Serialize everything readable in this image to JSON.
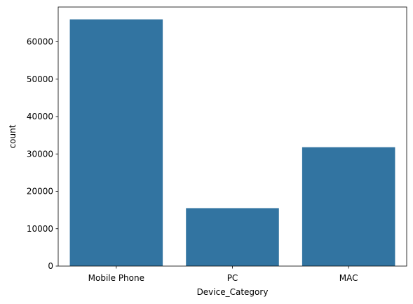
{
  "chart_data": {
    "type": "bar",
    "categories": [
      "Mobile Phone",
      "PC",
      "MAC"
    ],
    "values": [
      66000,
      15500,
      31800
    ],
    "xlabel": "Device_Category",
    "ylabel": "count",
    "ylim": [
      0,
      69300
    ],
    "yticks": [
      0,
      10000,
      20000,
      30000,
      40000,
      50000,
      60000
    ],
    "grid": false,
    "bar_color": "#3274a1"
  }
}
